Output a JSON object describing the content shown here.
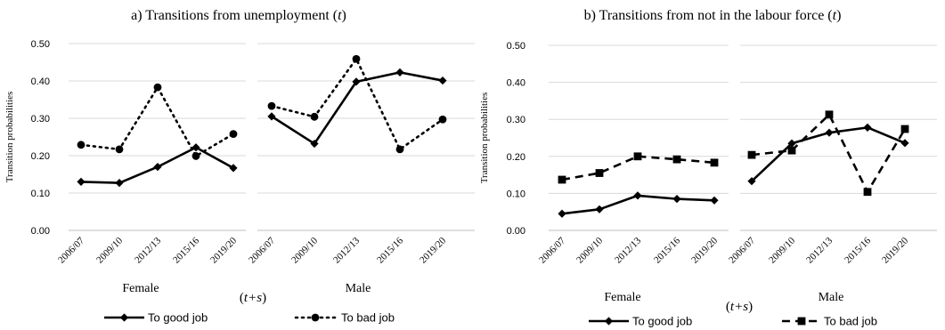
{
  "chart_data": [
    {
      "type": "line",
      "panel": "a",
      "title_prefix": "a) Transitions from unemployment (",
      "title_var": "t",
      "title_suffix": ")",
      "ylabel": "Transition probabilities",
      "ylim": [
        0,
        0.5
      ],
      "yticks": [
        "0.00",
        "0.10",
        "0.20",
        "0.30",
        "0.40",
        "0.50"
      ],
      "grid": true,
      "x_center_label_prefix": "(",
      "x_center_label_var": "t+s",
      "x_center_label_suffix": ")",
      "groups": [
        {
          "name": "Female",
          "categories": [
            "2006/07",
            "2009/10",
            "2012/13",
            "2015/16",
            "2019/20"
          ],
          "series": [
            {
              "name": "To good job",
              "values": [
                0.13,
                0.127,
                0.17,
                0.222,
                0.167
              ]
            },
            {
              "name": "To bad job",
              "values": [
                0.229,
                0.217,
                0.383,
                0.199,
                0.258
              ]
            }
          ]
        },
        {
          "name": "Male",
          "categories": [
            "2006/07",
            "2009/10",
            "2012/13",
            "2015/16",
            "2019/20"
          ],
          "series": [
            {
              "name": "To good job",
              "values": [
                0.305,
                0.232,
                0.398,
                0.423,
                0.401
              ]
            },
            {
              "name": "To bad job",
              "values": [
                0.333,
                0.304,
                0.459,
                0.217,
                0.297
              ]
            }
          ]
        }
      ],
      "legend": [
        {
          "label": "To good job",
          "style": "solid",
          "marker": "diamond"
        },
        {
          "label": "To bad job",
          "style": "dotted",
          "marker": "circle"
        }
      ]
    },
    {
      "type": "line",
      "panel": "b",
      "title_prefix": "b) Transitions from not in the labour force (",
      "title_var": "t",
      "title_suffix": ")",
      "ylabel": "Transition probabilities",
      "ylim": [
        0,
        0.5
      ],
      "yticks": [
        "0.00",
        "0.10",
        "0.20",
        "0.30",
        "0.40",
        "0.50"
      ],
      "grid": true,
      "x_center_label_prefix": "(",
      "x_center_label_var": "t+s",
      "x_center_label_suffix": ")",
      "groups": [
        {
          "name": "Female",
          "categories": [
            "2006/07",
            "2009/10",
            "2012/13",
            "2015/16",
            "2019/20"
          ],
          "series": [
            {
              "name": "To good job",
              "values": [
                0.045,
                0.057,
                0.094,
                0.085,
                0.081
              ]
            },
            {
              "name": "To bad job",
              "values": [
                0.137,
                0.155,
                0.2,
                0.192,
                0.183
              ]
            }
          ]
        },
        {
          "name": "Male",
          "categories": [
            "2006/07",
            "2009/10",
            "2012/13",
            "2015/16",
            "2019/20"
          ],
          "series": [
            {
              "name": "To good job",
              "values": [
                0.133,
                0.235,
                0.264,
                0.278,
                0.236
              ]
            },
            {
              "name": "To bad job",
              "values": [
                0.204,
                0.216,
                0.313,
                0.104,
                0.274
              ]
            }
          ]
        }
      ],
      "legend": [
        {
          "label": "To good job",
          "style": "solid",
          "marker": "diamond"
        },
        {
          "label": "To bad job",
          "style": "dashed",
          "marker": "square"
        }
      ]
    }
  ]
}
